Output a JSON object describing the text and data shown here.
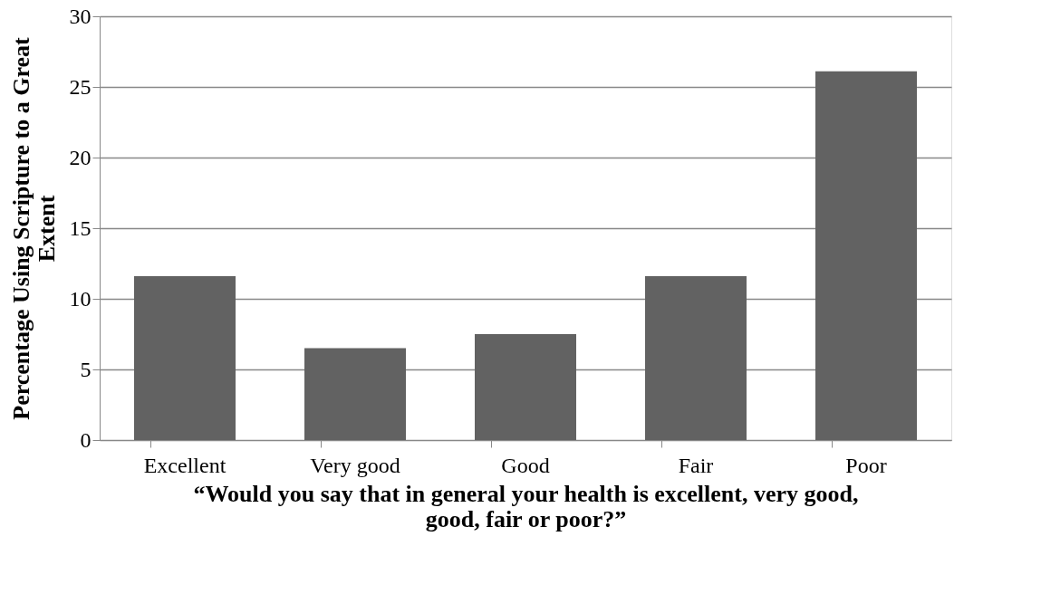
{
  "chart_data": {
    "type": "bar",
    "xlabel": "“Would you say that in general your health is excellent, very good, good, fair or poor?”",
    "ylabel": "Percentage Using Scripture to a Great Extent",
    "categories": [
      "Excellent",
      "Very good",
      "Good",
      "Fair",
      "Poor"
    ],
    "values": [
      11.6,
      6.5,
      7.5,
      11.6,
      26.1
    ],
    "color": "#626262",
    "ylim": [
      0,
      30
    ],
    "yticks": [
      0,
      5,
      10,
      15,
      20,
      25,
      30
    ],
    "grid": "y"
  }
}
